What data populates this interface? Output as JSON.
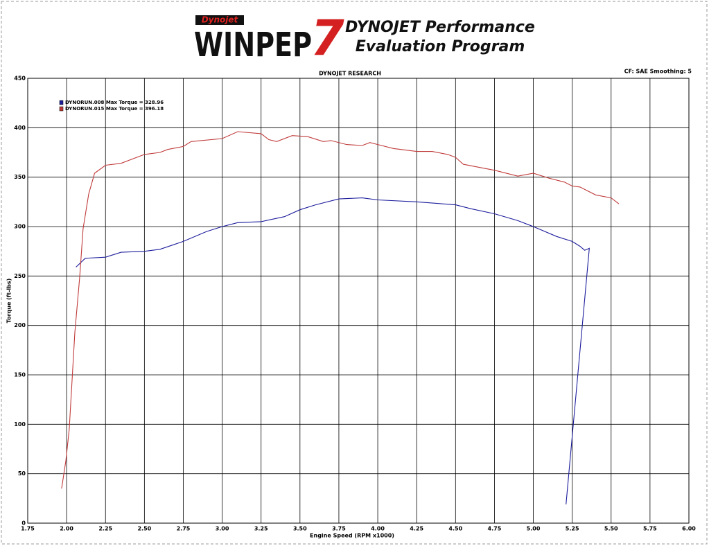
{
  "header": {
    "logo_brand": "Dynojet",
    "logo_name": "WINPEP",
    "logo_num": "7",
    "title_line1": "DYNOJET Performance",
    "title_line2": "Evaluation Program"
  },
  "chart_data": {
    "type": "line",
    "title": "DYNOJET RESEARCH",
    "subtitle": "CF: SAE  Smoothing: 5",
    "x_label": "Engine Speed (RPM x1000)",
    "y_label": "Torque (ft-lbs)",
    "xlim": [
      1.75,
      6.0
    ],
    "ylim": [
      0,
      450
    ],
    "xticks": [
      {
        "value": 1.75,
        "label": "1.75"
      },
      {
        "value": 2.0,
        "label": "2.00"
      },
      {
        "value": 2.25,
        "label": "2.25"
      },
      {
        "value": 2.5,
        "label": "2.50"
      },
      {
        "value": 2.75,
        "label": "2.75"
      },
      {
        "value": 3.0,
        "label": "3.00"
      },
      {
        "value": 3.25,
        "label": "3.25"
      },
      {
        "value": 3.5,
        "label": "3.50"
      },
      {
        "value": 3.75,
        "label": "3.75"
      },
      {
        "value": 4.0,
        "label": "4.00"
      },
      {
        "value": 4.25,
        "label": "4.25"
      },
      {
        "value": 4.5,
        "label": "4.50"
      },
      {
        "value": 4.75,
        "label": "4.75"
      },
      {
        "value": 5.0,
        "label": "5.00"
      },
      {
        "value": 5.25,
        "label": "5.25"
      },
      {
        "value": 5.5,
        "label": "5.50"
      },
      {
        "value": 5.75,
        "label": "5.75"
      },
      {
        "value": 6.0,
        "label": "6.00"
      }
    ],
    "yticks": [
      0,
      50,
      100,
      150,
      200,
      250,
      300,
      350,
      400,
      450
    ],
    "grid": true,
    "series": [
      {
        "name": "DYNORUN.008 Max Torque = 328.96",
        "color": "#1c1c9c",
        "x": [
          2.06,
          2.12,
          2.25,
          2.35,
          2.5,
          2.6,
          2.75,
          2.9,
          3.0,
          3.1,
          3.25,
          3.4,
          3.5,
          3.6,
          3.75,
          3.9,
          4.0,
          4.25,
          4.5,
          4.6,
          4.75,
          4.9,
          5.0,
          5.15,
          5.25,
          5.3,
          5.33,
          5.36,
          5.21
        ],
        "values": [
          259,
          268,
          269,
          274,
          275,
          277,
          285,
          295,
          300,
          304,
          305,
          310,
          317,
          322,
          328,
          329,
          327,
          325,
          322,
          318,
          313,
          306,
          300,
          290,
          285,
          280,
          276,
          278,
          19
        ]
      },
      {
        "name": "DYNORUN.015 Max Torque = 396.18",
        "color": "#c03a3a",
        "x": [
          1.968,
          1.995,
          2.017,
          2.053,
          2.084,
          2.106,
          2.142,
          2.18,
          2.25,
          2.35,
          2.5,
          2.6,
          2.65,
          2.75,
          2.8,
          3.0,
          3.1,
          3.25,
          3.3,
          3.35,
          3.45,
          3.55,
          3.65,
          3.7,
          3.8,
          3.9,
          3.95,
          4.0,
          4.1,
          4.25,
          4.35,
          4.45,
          4.5,
          4.55,
          4.65,
          4.75,
          4.9,
          5.0,
          5.1,
          5.2,
          5.25,
          5.3,
          5.4,
          5.5,
          5.55
        ],
        "values": [
          35,
          63,
          95,
          193,
          249,
          298,
          333,
          354,
          362,
          364,
          373,
          375,
          378,
          381,
          386,
          389,
          396,
          394,
          388,
          386,
          392,
          391,
          386,
          387,
          383,
          382,
          385,
          383,
          379,
          376,
          376,
          373,
          370,
          363,
          360,
          357,
          351,
          354,
          349,
          345,
          341,
          340,
          332,
          329,
          323
        ]
      }
    ],
    "legend": "upper left"
  }
}
